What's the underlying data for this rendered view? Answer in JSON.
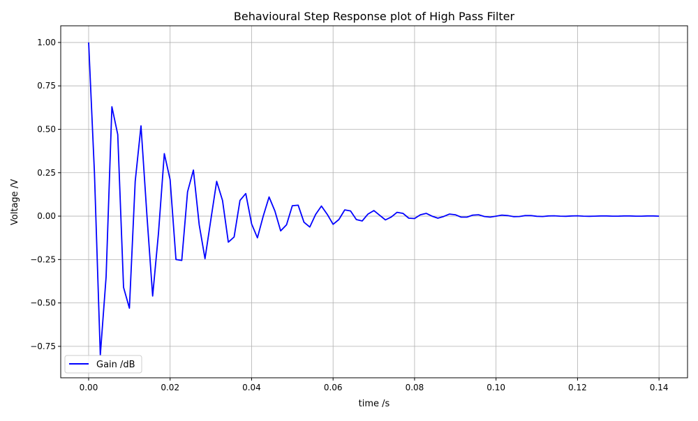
{
  "chart_data": {
    "type": "line",
    "title": "Behavioural Step Response plot of High Pass Filter",
    "xlabel": "time /s",
    "ylabel": "Voltage /V",
    "xlim": [
      -0.00685,
      0.147
    ],
    "ylim": [
      -0.931,
      1.096
    ],
    "xticks": [
      0.0,
      0.02,
      0.04,
      0.06,
      0.08,
      0.1,
      0.12,
      0.14
    ],
    "xtick_labels": [
      "0.00",
      "0.02",
      "0.04",
      "0.06",
      "0.08",
      "0.10",
      "0.12",
      "0.14"
    ],
    "yticks": [
      -0.75,
      -0.5,
      -0.25,
      0.0,
      0.25,
      0.5,
      0.75,
      1.0
    ],
    "ytick_labels": [
      "−0.75",
      "−0.50",
      "−0.25",
      "0.00",
      "0.25",
      "0.50",
      "0.75",
      "1.00"
    ],
    "grid": true,
    "legend_position": "lower-left",
    "series": [
      {
        "name": "Gain /dB",
        "color": "#0000ff",
        "x_start": 0.0,
        "x_step": 0.00142857,
        "values": [
          1.0,
          0.25,
          -0.8,
          -0.35,
          0.63,
          0.47,
          -0.41,
          -0.53,
          0.2,
          0.52,
          0.01,
          -0.46,
          -0.1,
          0.36,
          0.21,
          -0.25,
          -0.255,
          0.14,
          0.265,
          -0.05,
          -0.245,
          -0.02,
          0.2,
          0.09,
          -0.15,
          -0.12,
          0.09,
          0.13,
          -0.045,
          -0.125,
          0.0,
          0.11,
          0.03,
          -0.085,
          -0.05,
          0.06,
          0.063,
          -0.035,
          -0.063,
          0.01,
          0.058,
          0.01,
          -0.047,
          -0.02,
          0.036,
          0.03,
          -0.02,
          -0.028,
          0.012,
          0.032,
          0.005,
          -0.022,
          -0.005,
          0.022,
          0.016,
          -0.012,
          -0.014,
          0.008,
          0.016,
          0.0,
          -0.012,
          -0.002,
          0.012,
          0.008,
          -0.006,
          -0.006,
          0.006,
          0.008,
          -0.002,
          -0.006,
          0.0,
          0.006,
          0.003,
          -0.003,
          -0.002,
          0.003,
          0.003,
          -0.001,
          -0.002,
          0.001,
          0.002,
          0.0,
          -0.001,
          0.001,
          0.002,
          0.0,
          -0.001,
          0.0,
          0.001,
          0.001,
          0.0,
          0.0,
          0.001,
          0.001,
          0.0,
          0.0,
          0.001,
          0.001,
          0.0
        ]
      }
    ]
  }
}
